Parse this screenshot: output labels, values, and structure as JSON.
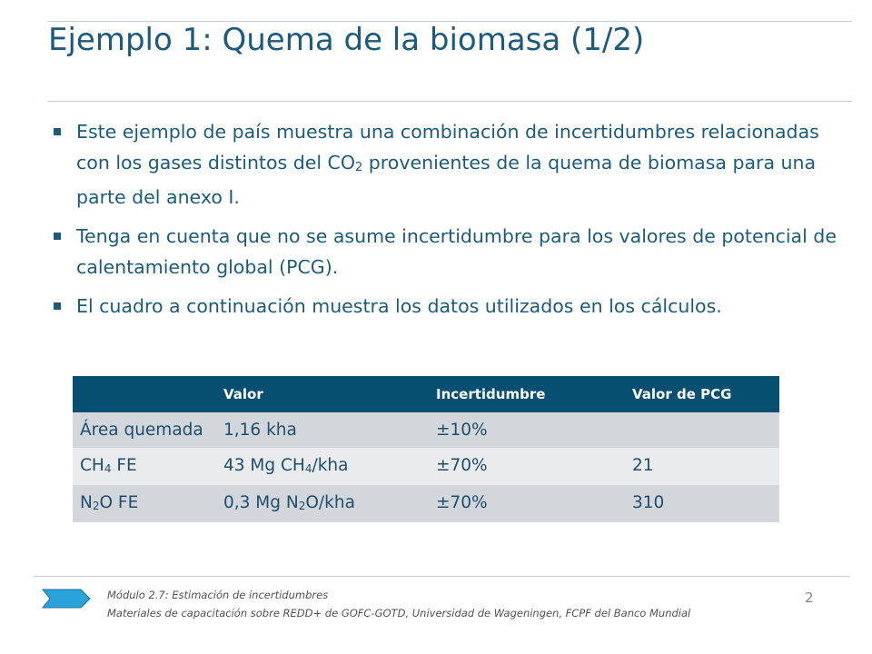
{
  "slide": {
    "title": "Ejemplo 1: Quema de la biomasa (1/2)",
    "bullets": [
      {
        "before": "Este ejemplo de país muestra una combinación de incertidumbres relacionadas con los gases distintos del CO",
        "sub": "2",
        "after": " provenientes de la quema de biomasa para una parte del anexo I."
      },
      {
        "text": "Tenga en cuenta que no se asume incertidumbre para los valores de potencial de calentamiento global (PCG)."
      },
      {
        "text": "El cuadro a continuación muestra los datos utilizados en los cálculos."
      }
    ]
  },
  "table": {
    "headers": [
      "",
      "Valor",
      "Incertidumbre",
      "Valor de PCG"
    ],
    "rows": [
      {
        "label": "Área quemada",
        "valor": "1,16 kha",
        "incertidumbre": "±10%",
        "pcg": ""
      },
      {
        "label_pre": "CH",
        "label_sub": "4",
        "label_post": " FE",
        "valor_pre": "43 Mg CH",
        "valor_sub": "4",
        "valor_post": "/kha",
        "incertidumbre": "±70%",
        "pcg": "21"
      },
      {
        "label_pre": "N",
        "label_sub": "2",
        "label_post": "O FE",
        "valor_pre": "0,3 Mg N",
        "valor_sub": "2",
        "valor_post": "O/kha",
        "incertidumbre": "±70%",
        "pcg": "310"
      }
    ]
  },
  "footer": {
    "line1": "Módulo 2.7: Estimación de incertidumbres",
    "line2": "Materiales de capacitación sobre REDD+ de GOFC-GOTD,  Universidad de Wageningen, FCPF del Banco Mundial",
    "page_number": "2",
    "arrow_icon": "chevron-arrow-icon"
  },
  "colors": {
    "title_text": "#1c5b7c",
    "table_header_bg": "#074f71",
    "row_dark_bg": "#d3d7db",
    "row_light_bg": "#e9ebed",
    "footer_arrow_fill": "#2ba3d9"
  }
}
